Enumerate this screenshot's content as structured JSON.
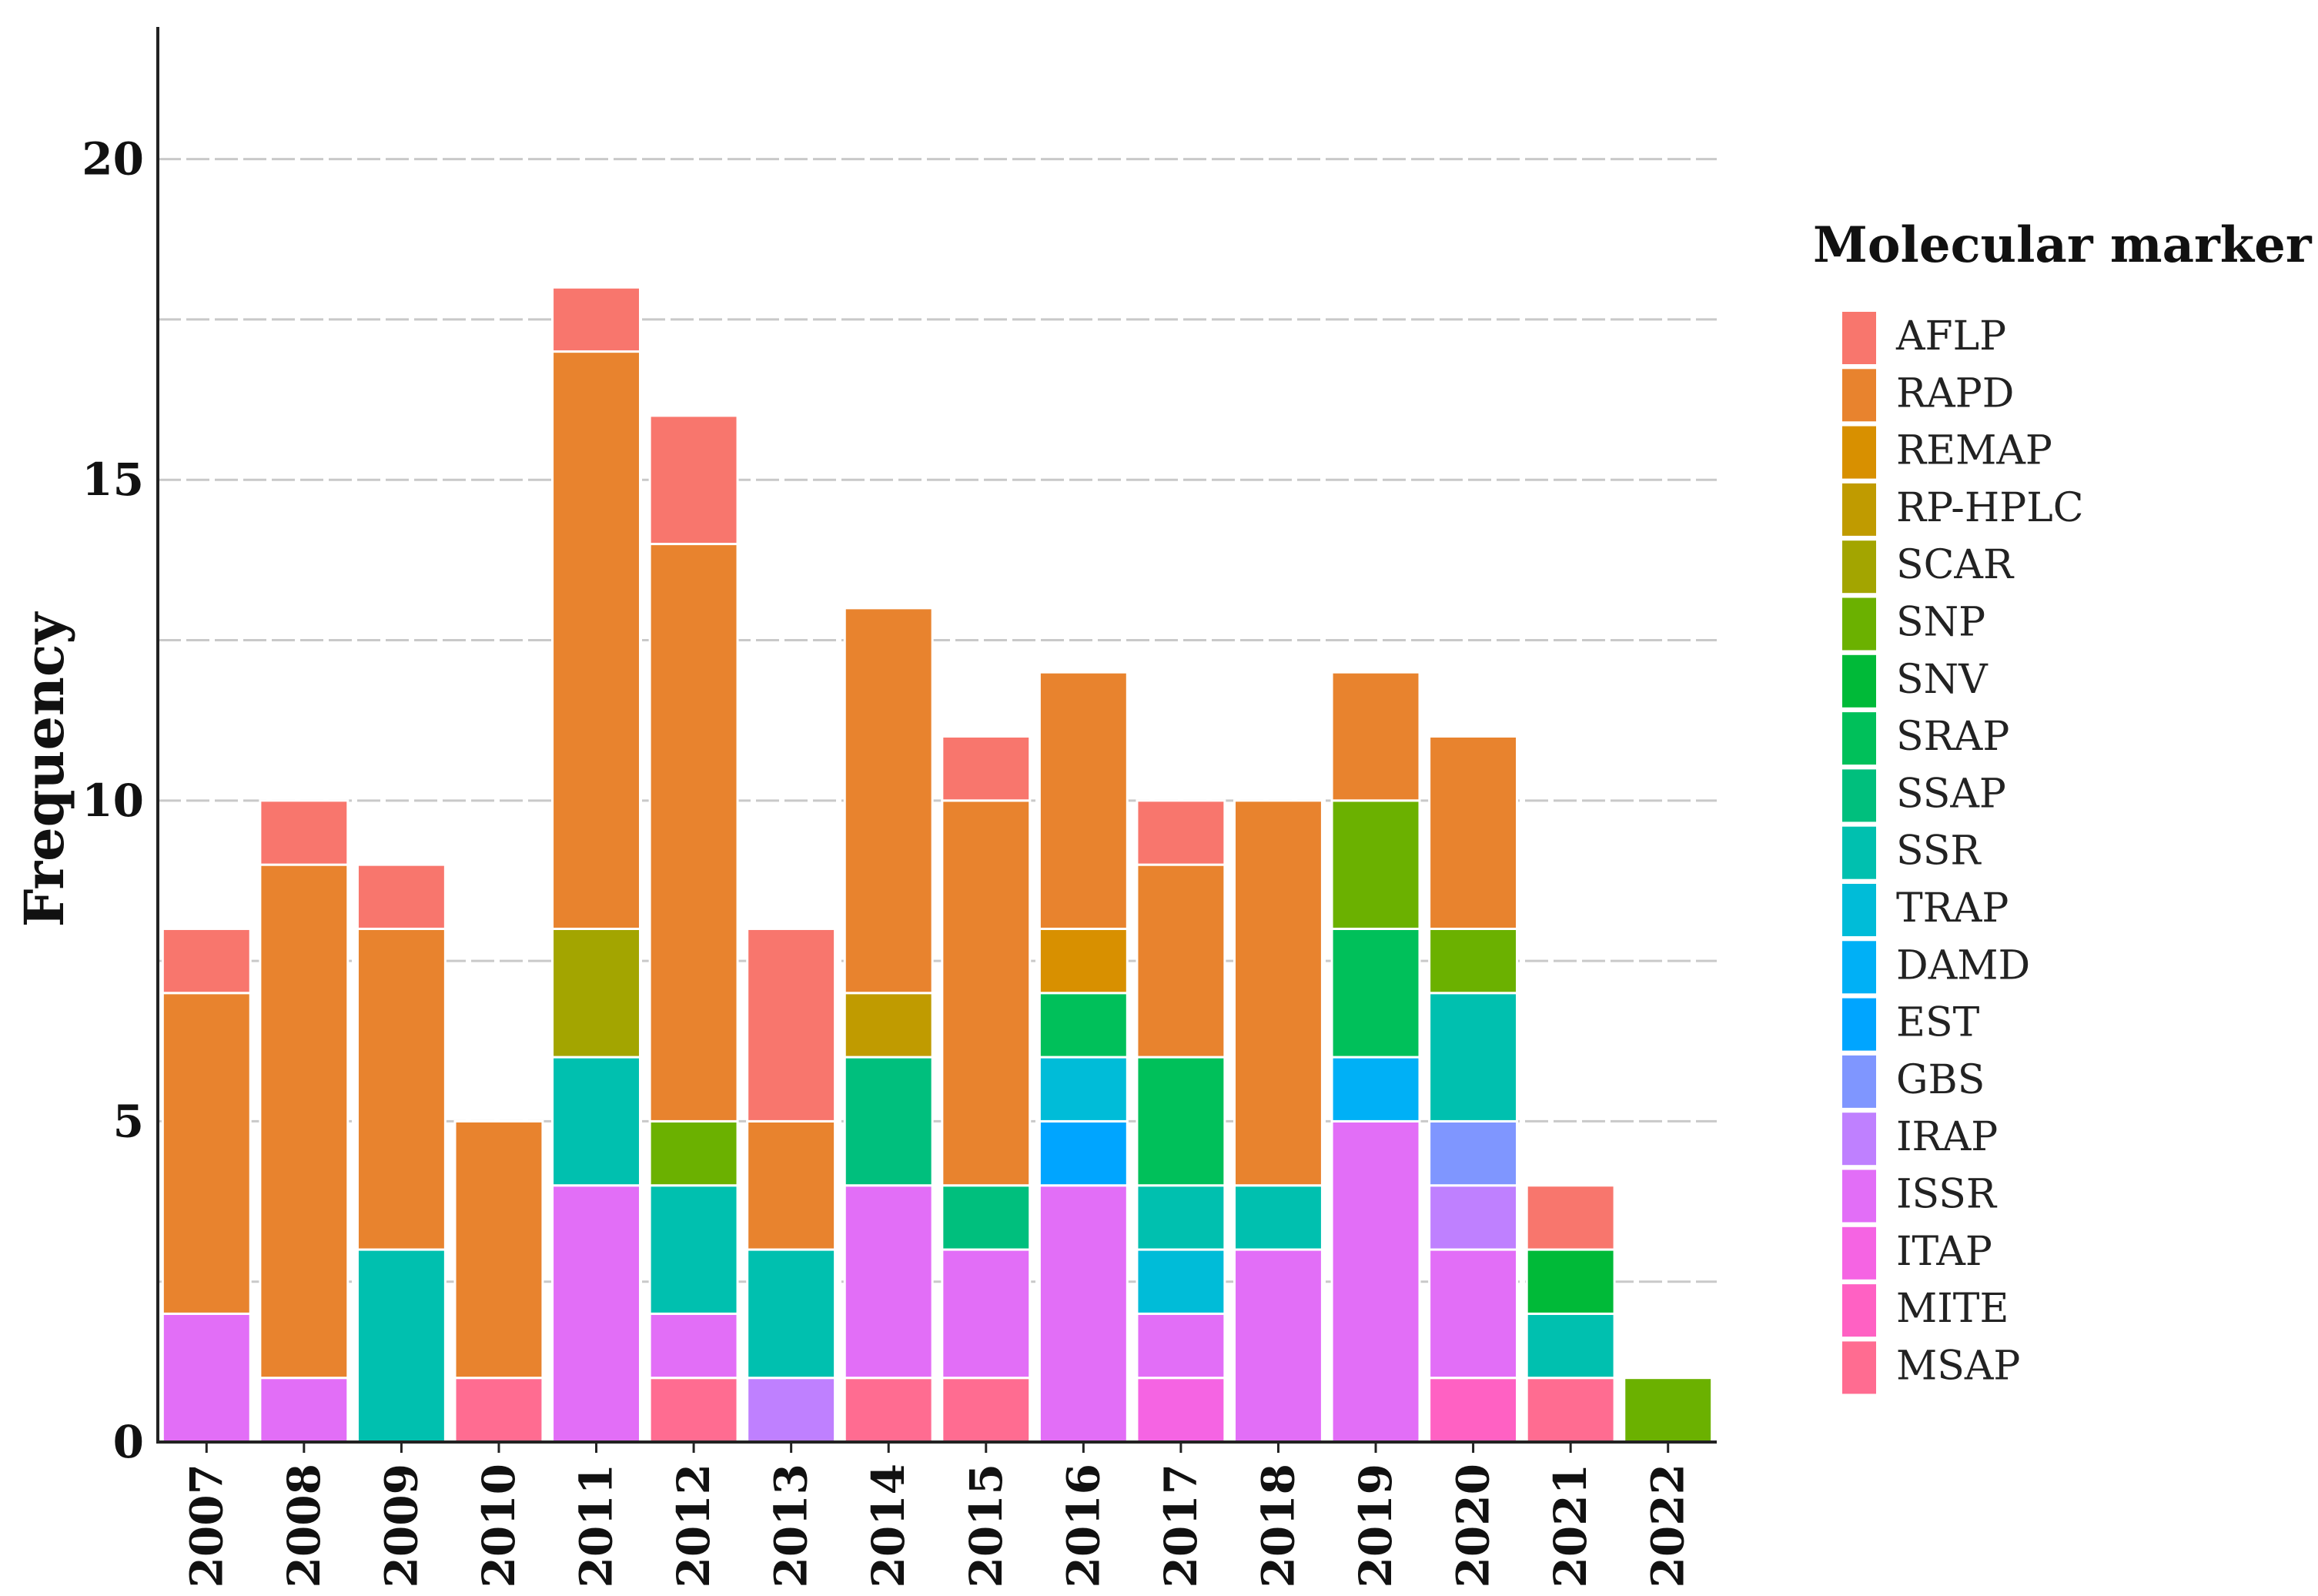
{
  "chart_data": {
    "type": "bar",
    "stacked": true,
    "categories": [
      "2007",
      "2008",
      "2009",
      "2010",
      "2011",
      "2012",
      "2013",
      "2014",
      "2015",
      "2016",
      "2017",
      "2018",
      "2019",
      "2020",
      "2021",
      "2022"
    ],
    "xlabel": "",
    "ylabel": "Frequency",
    "ylim": [
      0,
      22
    ],
    "yticks": [
      0,
      5,
      10,
      15,
      20
    ],
    "grid": true,
    "legend_title": "Molecular marker",
    "legend_position": "right",
    "series": [
      {
        "name": "AFLP",
        "color": "#F8766D",
        "values": [
          1,
          1,
          1,
          0,
          1,
          2,
          3,
          0,
          1,
          0,
          1,
          0,
          0,
          0,
          1,
          0
        ]
      },
      {
        "name": "RAPD",
        "color": "#E8832E",
        "values": [
          5,
          8,
          5,
          4,
          9,
          9,
          2,
          6,
          6,
          4,
          3,
          6,
          2,
          3,
          0,
          0
        ]
      },
      {
        "name": "REMAP",
        "color": "#D89000",
        "values": [
          0,
          0,
          0,
          0,
          0,
          0,
          0,
          0,
          0,
          1,
          0,
          0,
          0,
          0,
          0,
          0
        ]
      },
      {
        "name": "RP-HPLC",
        "color": "#C09B00",
        "values": [
          0,
          0,
          0,
          0,
          0,
          0,
          0,
          1,
          0,
          0,
          0,
          0,
          0,
          0,
          0,
          0
        ]
      },
      {
        "name": "SCAR",
        "color": "#A3A500",
        "values": [
          0,
          0,
          0,
          0,
          2,
          0,
          0,
          0,
          0,
          0,
          0,
          0,
          0,
          0,
          0,
          0
        ]
      },
      {
        "name": "SNP",
        "color": "#6BB100",
        "values": [
          0,
          0,
          0,
          0,
          0,
          1,
          0,
          0,
          0,
          0,
          0,
          0,
          2,
          1,
          0,
          1
        ]
      },
      {
        "name": "SNV",
        "color": "#00BA38",
        "values": [
          0,
          0,
          0,
          0,
          0,
          0,
          0,
          0,
          0,
          0,
          0,
          0,
          0,
          0,
          1,
          0
        ]
      },
      {
        "name": "SRAP",
        "color": "#00C05A",
        "values": [
          0,
          0,
          0,
          0,
          0,
          0,
          0,
          0,
          0,
          1,
          2,
          0,
          2,
          0,
          0,
          0
        ]
      },
      {
        "name": "SSAP",
        "color": "#00BF7D",
        "values": [
          0,
          0,
          0,
          0,
          0,
          0,
          0,
          2,
          1,
          0,
          0,
          0,
          0,
          0,
          0,
          0
        ]
      },
      {
        "name": "SSR",
        "color": "#00C0AF",
        "values": [
          0,
          0,
          3,
          0,
          2,
          2,
          2,
          0,
          0,
          0,
          1,
          1,
          0,
          2,
          1,
          0
        ]
      },
      {
        "name": "TRAP",
        "color": "#00BCD8",
        "values": [
          0,
          0,
          0,
          0,
          0,
          0,
          0,
          0,
          0,
          1,
          1,
          0,
          0,
          0,
          0,
          0
        ]
      },
      {
        "name": "DAMD",
        "color": "#00B0F6",
        "values": [
          0,
          0,
          0,
          0,
          0,
          0,
          0,
          0,
          0,
          0,
          0,
          0,
          1,
          0,
          0,
          0
        ]
      },
      {
        "name": "EST",
        "color": "#00A5FF",
        "values": [
          0,
          0,
          0,
          0,
          0,
          0,
          0,
          0,
          0,
          1,
          0,
          0,
          0,
          0,
          0,
          0
        ]
      },
      {
        "name": "GBS",
        "color": "#7F96FF",
        "values": [
          0,
          0,
          0,
          0,
          0,
          0,
          0,
          0,
          0,
          0,
          0,
          0,
          0,
          1,
          0,
          0
        ]
      },
      {
        "name": "IRAP",
        "color": "#BF80FF",
        "values": [
          0,
          0,
          0,
          0,
          0,
          0,
          1,
          0,
          0,
          0,
          0,
          0,
          0,
          1,
          0,
          0
        ]
      },
      {
        "name": "ISSR",
        "color": "#E26EF7",
        "values": [
          2,
          1,
          0,
          0,
          4,
          1,
          0,
          3,
          2,
          4,
          1,
          3,
          5,
          2,
          0,
          0
        ]
      },
      {
        "name": "ITAP",
        "color": "#F564E3",
        "values": [
          0,
          0,
          0,
          0,
          0,
          0,
          0,
          0,
          0,
          0,
          1,
          0,
          0,
          0,
          0,
          0
        ]
      },
      {
        "name": "MITE",
        "color": "#FF61C3",
        "values": [
          0,
          0,
          0,
          0,
          0,
          0,
          0,
          0,
          0,
          0,
          0,
          0,
          0,
          1,
          0,
          0
        ]
      },
      {
        "name": "MSAP",
        "color": "#FF6C91",
        "values": [
          0,
          0,
          0,
          1,
          0,
          1,
          0,
          1,
          1,
          0,
          0,
          0,
          0,
          0,
          1,
          0
        ]
      }
    ]
  }
}
